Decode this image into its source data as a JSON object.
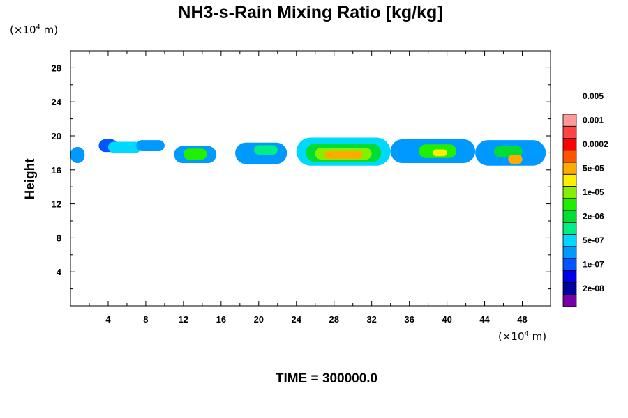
{
  "chart_data": {
    "type": "heatmap",
    "title": "NH3-s-Rain Mixing Ratio [kg/kg]",
    "ylabel": "Height",
    "y_unit": {
      "prefix": "(×10",
      "exponent": "4",
      "suffix": " m)"
    },
    "x_unit": {
      "prefix": "(×10",
      "exponent": "4",
      "suffix": " m)"
    },
    "xlim": [
      0,
      51
    ],
    "ylim": [
      0,
      30
    ],
    "x_ticks": [
      4,
      8,
      12,
      16,
      20,
      24,
      28,
      32,
      36,
      40,
      44,
      48
    ],
    "y_ticks": [
      4,
      8,
      12,
      16,
      20,
      24,
      28
    ],
    "colorbar": {
      "colors": [
        "#7700aa",
        "#0000a0",
        "#0000e8",
        "#0055ff",
        "#0099ff",
        "#00d8ff",
        "#00ee88",
        "#00dd33",
        "#22ee00",
        "#88ee00",
        "#ffee00",
        "#ffaa00",
        "#ff5500",
        "#ff0000",
        "#ff4444",
        "#ff9999"
      ],
      "labels": [
        "2e-08",
        "1e-07",
        "5e-07",
        "2e-06",
        "1e-05",
        "5e-05",
        "0.0002",
        "0.001",
        "0.005"
      ]
    },
    "field": {
      "description_levels": "level index 0-15 maps to colorbar colors",
      "cells": [
        {
          "x": [
            0,
            1.5
          ],
          "y": [
            16.8,
            18.7
          ],
          "level": 4
        },
        {
          "x": [
            3,
            5
          ],
          "y": [
            18.1,
            19.6
          ],
          "level": 3
        },
        {
          "x": [
            4,
            7.5
          ],
          "y": [
            18.0,
            19.3
          ],
          "level": 5
        },
        {
          "x": [
            7,
            10
          ],
          "y": [
            18.2,
            19.5
          ],
          "level": 4
        },
        {
          "x": [
            11,
            15.5
          ],
          "y": [
            16.8,
            18.8
          ],
          "level": 4
        },
        {
          "x": [
            12,
            14.5
          ],
          "y": [
            17.2,
            18.5
          ],
          "level": 8
        },
        {
          "x": [
            17.5,
            23
          ],
          "y": [
            16.7,
            19.2
          ],
          "level": 4
        },
        {
          "x": [
            19.5,
            22
          ],
          "y": [
            17.8,
            18.9
          ],
          "level": 6
        },
        {
          "x": [
            24,
            34
          ],
          "y": [
            16.5,
            19.8
          ],
          "level": 5
        },
        {
          "x": [
            25,
            33
          ],
          "y": [
            16.9,
            19.1
          ],
          "level": 7
        },
        {
          "x": [
            26,
            32
          ],
          "y": [
            17.2,
            18.6
          ],
          "level": 9
        },
        {
          "x": [
            27,
            31
          ],
          "y": [
            17.3,
            18.2
          ],
          "level": 11
        },
        {
          "x": [
            34,
            43
          ],
          "y": [
            16.8,
            19.6
          ],
          "level": 4
        },
        {
          "x": [
            37,
            41
          ],
          "y": [
            17.4,
            19.0
          ],
          "level": 8
        },
        {
          "x": [
            38.5,
            40
          ],
          "y": [
            17.6,
            18.4
          ],
          "level": 10
        },
        {
          "x": [
            43,
            50.5
          ],
          "y": [
            16.5,
            19.5
          ],
          "level": 4
        },
        {
          "x": [
            45,
            48
          ],
          "y": [
            17.5,
            18.8
          ],
          "level": 7
        },
        {
          "x": [
            46.5,
            48
          ],
          "y": [
            16.7,
            17.8
          ],
          "level": 11
        }
      ]
    }
  },
  "footer": {
    "time_label": "TIME = 300000.0"
  }
}
